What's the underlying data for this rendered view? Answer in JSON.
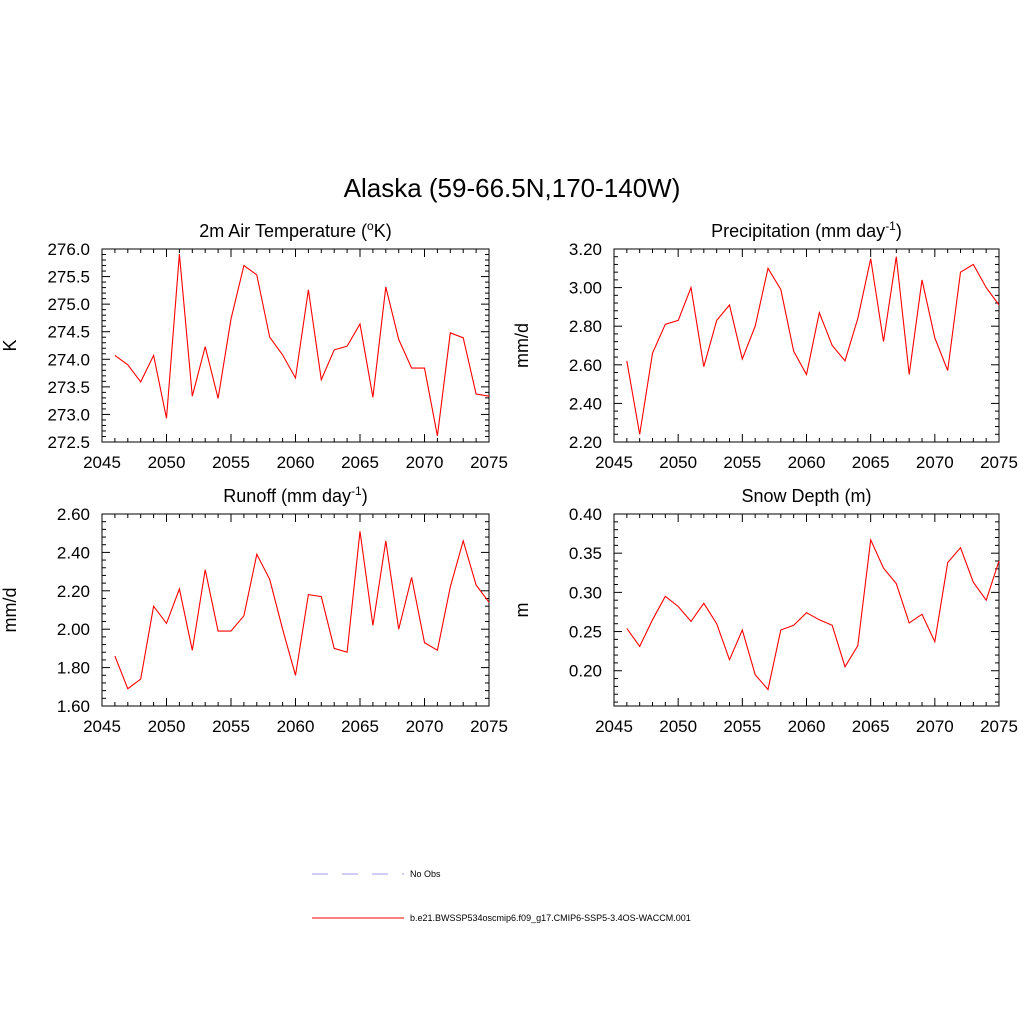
{
  "figure": {
    "title": "Alaska (59-66.5N,170-140W)",
    "line_color": "#ff0000",
    "obs_color": "#9999ee",
    "legend": {
      "obs_label": "No Obs",
      "model_label": "b.e21.BWSSP534oscmip6.f09_g17.CMIP6-SSP5-3.4OS-WACCM.001"
    }
  },
  "chart_data": [
    {
      "id": "tas",
      "type": "line",
      "title": "2m Air Temperature (",
      "title_sup": "o",
      "title_suffix": "K)",
      "ylabel": "K",
      "xlim": [
        2045,
        2075
      ],
      "ylim": [
        272.5,
        276.0
      ],
      "xticks": [
        2045,
        2050,
        2055,
        2060,
        2065,
        2070,
        2075
      ],
      "xtick_labels": [
        "2045",
        "2050",
        "2055",
        "2060",
        "2065",
        "2070",
        "2075"
      ],
      "yticks": [
        272.5,
        273.0,
        273.5,
        274.0,
        274.5,
        275.0,
        275.5,
        276.0
      ],
      "ytick_labels": [
        "272.5",
        "273.0",
        "273.5",
        "274.0",
        "274.5",
        "275.0",
        "275.5",
        "276.0"
      ],
      "x": [
        2046,
        2047,
        2048,
        2049,
        2050,
        2051,
        2052,
        2053,
        2054,
        2055,
        2056,
        2057,
        2058,
        2059,
        2060,
        2061,
        2062,
        2063,
        2064,
        2065,
        2066,
        2067,
        2068,
        2069,
        2070,
        2071,
        2072,
        2073,
        2074,
        2075
      ],
      "values": [
        274.07,
        273.9,
        273.59,
        274.07,
        272.93,
        275.91,
        273.33,
        274.23,
        273.29,
        274.73,
        275.7,
        275.53,
        274.4,
        274.08,
        273.66,
        275.26,
        273.63,
        274.17,
        274.24,
        274.64,
        273.31,
        275.31,
        274.36,
        273.84,
        273.84,
        272.61,
        274.48,
        274.39,
        273.37,
        273.33
      ]
    },
    {
      "id": "precip",
      "type": "line",
      "title": "Precipitation (mm day",
      "title_sup": "-1",
      "title_suffix": ")",
      "ylabel": "mm/d",
      "xlim": [
        2045,
        2075
      ],
      "ylim": [
        2.2,
        3.2
      ],
      "xticks": [
        2045,
        2050,
        2055,
        2060,
        2065,
        2070,
        2075
      ],
      "xtick_labels": [
        "2045",
        "2050",
        "2055",
        "2060",
        "2065",
        "2070",
        "2075"
      ],
      "yticks": [
        2.2,
        2.4,
        2.6,
        2.8,
        3.0,
        3.2
      ],
      "ytick_labels": [
        "2.20",
        "2.40",
        "2.60",
        "2.80",
        "3.00",
        "3.20"
      ],
      "x": [
        2046,
        2047,
        2048,
        2049,
        2050,
        2051,
        2052,
        2053,
        2054,
        2055,
        2056,
        2057,
        2058,
        2059,
        2060,
        2061,
        2062,
        2063,
        2064,
        2065,
        2066,
        2067,
        2068,
        2069,
        2070,
        2071,
        2072,
        2073,
        2074,
        2075
      ],
      "values": [
        2.62,
        2.24,
        2.66,
        2.81,
        2.83,
        3.0,
        2.59,
        2.83,
        2.91,
        2.63,
        2.8,
        3.1,
        2.99,
        2.67,
        2.55,
        2.87,
        2.7,
        2.62,
        2.84,
        3.15,
        2.72,
        3.16,
        2.55,
        3.04,
        2.74,
        2.57,
        3.08,
        3.12,
        3.0,
        2.91
      ]
    },
    {
      "id": "runoff",
      "type": "line",
      "title": "Runoff (mm day",
      "title_sup": "-1",
      "title_suffix": ")",
      "ylabel": "mm/d",
      "xlim": [
        2045,
        2075
      ],
      "ylim": [
        1.6,
        2.6
      ],
      "xticks": [
        2045,
        2050,
        2055,
        2060,
        2065,
        2070,
        2075
      ],
      "xtick_labels": [
        "2045",
        "2050",
        "2055",
        "2060",
        "2065",
        "2070",
        "2075"
      ],
      "yticks": [
        1.6,
        1.8,
        2.0,
        2.2,
        2.4,
        2.6
      ],
      "ytick_labels": [
        "1.60",
        "1.80",
        "2.00",
        "2.20",
        "2.40",
        "2.60"
      ],
      "x": [
        2046,
        2047,
        2048,
        2049,
        2050,
        2051,
        2052,
        2053,
        2054,
        2055,
        2056,
        2057,
        2058,
        2059,
        2060,
        2061,
        2062,
        2063,
        2064,
        2065,
        2066,
        2067,
        2068,
        2069,
        2070,
        2071,
        2072,
        2073,
        2074,
        2075
      ],
      "values": [
        1.86,
        1.69,
        1.74,
        2.12,
        2.03,
        2.21,
        1.89,
        2.31,
        1.99,
        1.99,
        2.07,
        2.39,
        2.26,
        2.0,
        1.76,
        2.18,
        2.17,
        1.9,
        1.88,
        2.51,
        2.02,
        2.46,
        2.0,
        2.27,
        1.93,
        1.89,
        2.22,
        2.46,
        2.23,
        2.14
      ]
    },
    {
      "id": "snow",
      "type": "line",
      "title": "Snow Depth (m)",
      "title_sup": "",
      "title_suffix": "",
      "ylabel": "m",
      "xlim": [
        2045,
        2075
      ],
      "ylim": [
        0.155,
        0.4
      ],
      "xticks": [
        2045,
        2050,
        2055,
        2060,
        2065,
        2070,
        2075
      ],
      "xtick_labels": [
        "2045",
        "2050",
        "2055",
        "2060",
        "2065",
        "2070",
        "2075"
      ],
      "yticks": [
        0.2,
        0.25,
        0.3,
        0.35,
        0.4
      ],
      "ytick_labels": [
        "0.20",
        "0.25",
        "0.30",
        "0.35",
        "0.40"
      ],
      "x": [
        2046,
        2047,
        2048,
        2049,
        2050,
        2051,
        2052,
        2053,
        2054,
        2055,
        2056,
        2057,
        2058,
        2059,
        2060,
        2061,
        2062,
        2063,
        2064,
        2065,
        2066,
        2067,
        2068,
        2069,
        2070,
        2071,
        2072,
        2073,
        2074,
        2075
      ],
      "values": [
        0.254,
        0.231,
        0.265,
        0.295,
        0.282,
        0.263,
        0.286,
        0.26,
        0.214,
        0.252,
        0.195,
        0.176,
        0.252,
        0.258,
        0.274,
        0.265,
        0.258,
        0.205,
        0.232,
        0.367,
        0.331,
        0.311,
        0.261,
        0.272,
        0.237,
        0.338,
        0.357,
        0.313,
        0.29,
        0.34
      ]
    }
  ]
}
